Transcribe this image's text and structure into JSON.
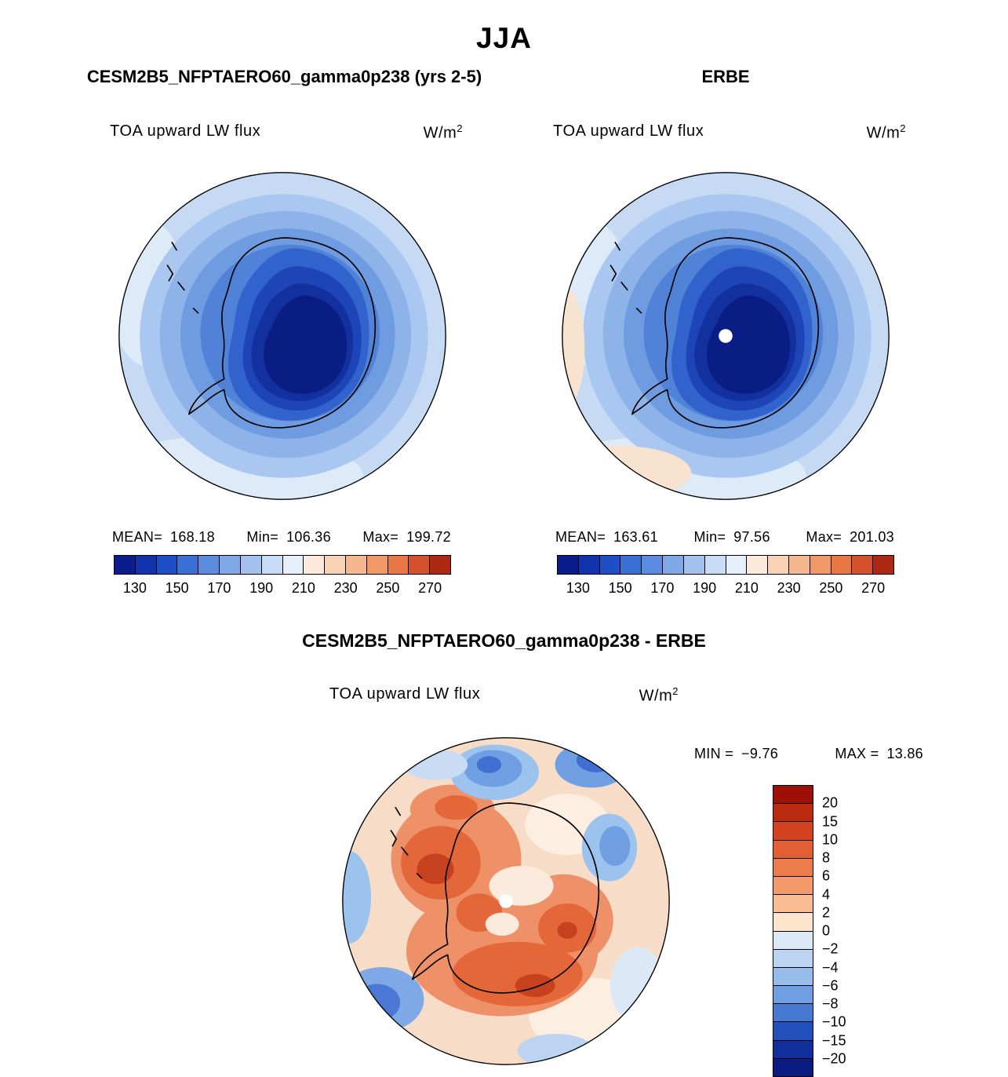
{
  "title": "JJA",
  "panels": {
    "model": {
      "title": "CESM2B5_NFPTAERO60_gamma0p238 (yrs 2-5)",
      "field_label": "TOA upward LW flux",
      "units_base": "W/m",
      "units_exp": "2",
      "stats": {
        "mean_label": "MEAN=",
        "mean": "168.18",
        "min_label": "Min=",
        "min": "106.36",
        "max_label": "Max=",
        "max": "199.72"
      }
    },
    "obs": {
      "title": "ERBE",
      "field_label": "TOA upward LW flux",
      "units_base": "W/m",
      "units_exp": "2",
      "stats": {
        "mean_label": "MEAN=",
        "mean": "163.61",
        "min_label": "Min=",
        "min": "97.56",
        "max_label": "Max=",
        "max": "201.03"
      }
    },
    "diff": {
      "title": "CESM2B5_NFPTAERO60_gamma0p238 - ERBE",
      "field_label": "TOA upward LW flux",
      "units_base": "W/m",
      "units_exp": "2",
      "stats": {
        "min_label": "MIN =",
        "min": "−9.76",
        "max_label": "MAX =",
        "max": "13.86"
      }
    }
  },
  "colorbar": {
    "ticks": [
      "130",
      "150",
      "170",
      "190",
      "210",
      "230",
      "250",
      "270"
    ],
    "colors": [
      "#0b1c8c",
      "#1233ae",
      "#1e4fc8",
      "#3a6fd4",
      "#5b8ce0",
      "#7fa8e8",
      "#a3c2ef",
      "#c8dcf5",
      "#e6effa",
      "#fbeadb",
      "#f8d2b4",
      "#f5b78e",
      "#f09868",
      "#e97746",
      "#d4512b",
      "#ad2812"
    ]
  },
  "diff_colorbar": {
    "labels": [
      "20",
      "15",
      "10",
      "8",
      "6",
      "4",
      "2",
      "0",
      "−2",
      "−4",
      "−6",
      "−8",
      "−10",
      "−15",
      "−20"
    ],
    "colors": [
      "#9c1005",
      "#ba2a10",
      "#d4431f",
      "#e25f33",
      "#ec7c4c",
      "#f29a6a",
      "#f8bd92",
      "#fce4cd",
      "#dce9f7",
      "#bcd4f1",
      "#97bcea",
      "#6f9fe0",
      "#4579d2",
      "#2250bc",
      "#12309c",
      "#0a1c80"
    ]
  },
  "chart_data": [
    {
      "type": "heatmap",
      "panel": "model",
      "title": "CESM2B5_NFPTAERO60_gamma0p238 (yrs 2-5)",
      "variable": "TOA upward LW flux",
      "units": "W/m^2",
      "season": "JJA",
      "projection": "south polar stereographic (Antarctica)",
      "mean": 168.18,
      "min": 106.36,
      "max": 199.72,
      "colorbar_ticks": [
        130,
        150,
        170,
        190,
        210,
        230,
        250,
        270
      ],
      "contour_interval": 10,
      "legend_position": "bottom"
    },
    {
      "type": "heatmap",
      "panel": "observation",
      "title": "ERBE",
      "variable": "TOA upward LW flux",
      "units": "W/m^2",
      "season": "JJA",
      "projection": "south polar stereographic (Antarctica)",
      "mean": 163.61,
      "min": 97.56,
      "max": 201.03,
      "colorbar_ticks": [
        130,
        150,
        170,
        190,
        210,
        230,
        250,
        270
      ],
      "contour_interval": 10,
      "legend_position": "bottom"
    },
    {
      "type": "heatmap",
      "panel": "difference",
      "title": "CESM2B5_NFPTAERO60_gamma0p238 - ERBE",
      "variable": "TOA upward LW flux",
      "units": "W/m^2",
      "season": "JJA",
      "projection": "south polar stereographic (Antarctica)",
      "min": -9.76,
      "max": 13.86,
      "colorbar_levels": [
        20,
        15,
        10,
        8,
        6,
        4,
        2,
        0,
        -2,
        -4,
        -6,
        -8,
        -10,
        -15,
        -20
      ],
      "legend_position": "right"
    }
  ]
}
